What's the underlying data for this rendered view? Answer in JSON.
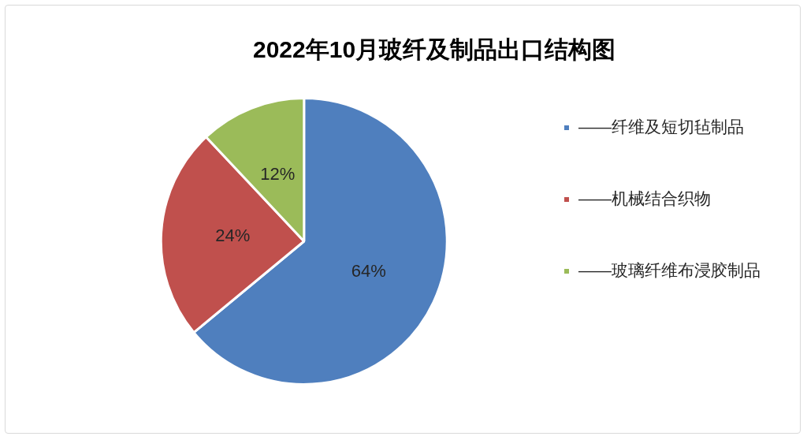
{
  "chart_data": {
    "type": "pie",
    "title": "2022年10月玻纤及制品出口结构图",
    "categories": [
      "——纤维及短切毡制品",
      "——机械结合织物",
      "——玻璃纤维布浸胶制品"
    ],
    "values": [
      64,
      24,
      12
    ],
    "colors": [
      "#4f7fbe",
      "#c0504d",
      "#9bbb59"
    ],
    "value_labels": [
      "64%",
      "24%",
      "12%"
    ],
    "legend": "right"
  }
}
